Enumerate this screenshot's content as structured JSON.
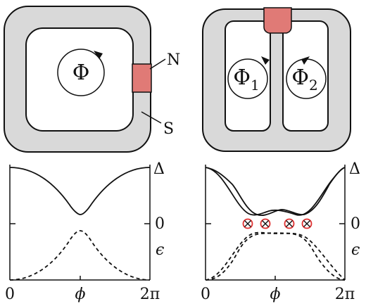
{
  "labels": {
    "flux": "Φ",
    "flux_1": "Φ",
    "flux_1_sub": "1",
    "flux_2": "Φ",
    "flux_2_sub": "2",
    "normal": "N",
    "superconductor": "S",
    "delta_left": "Δ",
    "delta_right": "Δ",
    "zero_left": "0",
    "zero_right": "0",
    "epsilon_left": "ϵ",
    "epsilon_right": "ϵ",
    "x_start_left": "0",
    "x_mid_left": "ϕ",
    "x_end_left": "2π",
    "x_start_right": "0",
    "x_mid_right": "ϕ",
    "x_end_right": "2π"
  },
  "colors": {
    "ring_fill": "#d9d9d9",
    "normal_region": "#e07a76",
    "crossing_marker": "#e03030",
    "line": "#111111"
  }
}
